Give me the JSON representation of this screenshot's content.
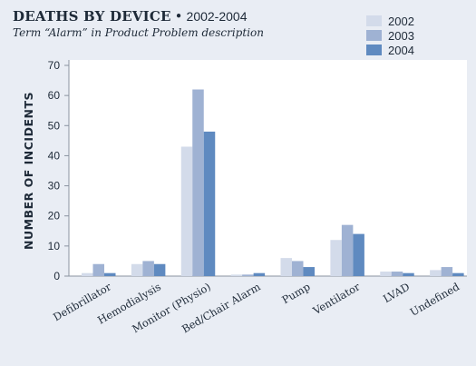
{
  "header": {
    "title": "DEATHS BY DEVICE",
    "separator": "•",
    "years": "2002-2004",
    "subtitle": "Term “Alarm” in Product Problem description"
  },
  "colors": {
    "background": "#e9edf4",
    "plot_background": "#ffffff",
    "axis": "#8a93a0",
    "text": "#1e2a38"
  },
  "chart_data": {
    "type": "bar",
    "title": "DEATHS BY DEVICE • 2002-2004",
    "subtitle": "Term “Alarm” in Product Problem description",
    "xlabel": "",
    "ylabel": "NUMBER OF INCIDENTS",
    "ylim": [
      0,
      70
    ],
    "yticks": [
      0,
      10,
      20,
      30,
      40,
      50,
      60,
      70
    ],
    "grid": false,
    "legend_position": "top-right",
    "categories": [
      "Defibrillator",
      "Hemodialysis",
      "Monitor (Physio)",
      "Bed/Chair Alarm",
      "Pump",
      "Ventilator",
      "LVAD",
      "Undefined"
    ],
    "series": [
      {
        "name": "2002",
        "color": "#d3dbea",
        "values": [
          1,
          4,
          43,
          0.5,
          6,
          12,
          1.5,
          2
        ]
      },
      {
        "name": "2003",
        "color": "#9fb2d3",
        "values": [
          4,
          5,
          62,
          0.5,
          5,
          17,
          1.5,
          3
        ]
      },
      {
        "name": "2004",
        "color": "#5f8ac0",
        "values": [
          1,
          4,
          48,
          1,
          3,
          14,
          1,
          1
        ]
      }
    ]
  }
}
